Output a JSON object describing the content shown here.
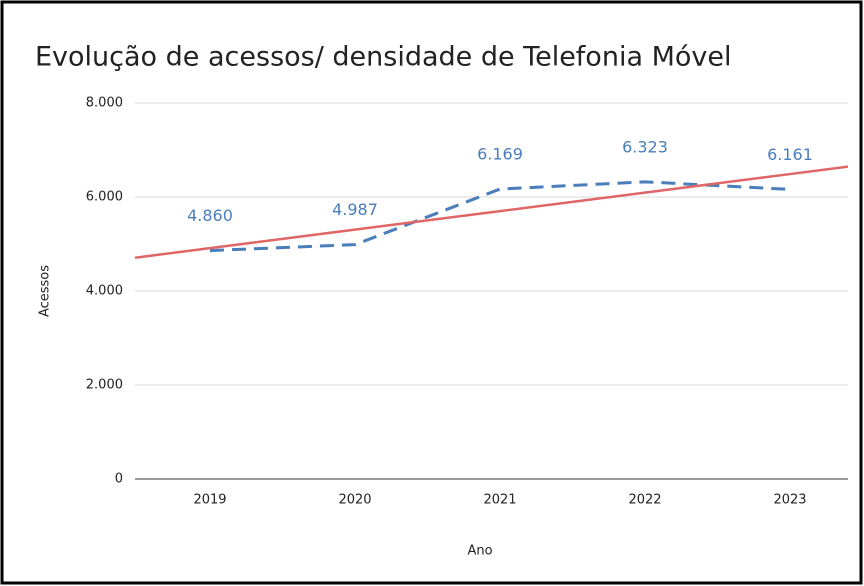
{
  "chart_data": {
    "type": "line",
    "title": "Evolução de acessos/ densidade de Telefonia Móvel",
    "x_label": "Ano",
    "y_label": "Acessos",
    "categories": [
      "2019",
      "2020",
      "2021",
      "2022",
      "2023"
    ],
    "series": [
      {
        "color": "#4a7ebb",
        "dashed": true,
        "values": [
          4860,
          4987,
          6169,
          6323,
          6161
        ],
        "value_labels": [
          "4.860",
          "4.987",
          "6.169",
          "6.323",
          "6.161"
        ]
      },
      {
        "color": "#e06666",
        "dashed": false,
        "trendline": true,
        "values": [
          4912,
          5306,
          5700,
          6094,
          6488
        ]
      }
    ],
    "ylim": [
      0,
      8000
    ],
    "yticks": [
      0,
      {
        "value": 2000,
        "label": "2.000"
      },
      {
        "value": 4000,
        "label": "4.000"
      },
      {
        "value": 6000,
        "label": "6.000"
      },
      {
        "value": 8000,
        "label": "8.000"
      }
    ],
    "grid": true
  }
}
